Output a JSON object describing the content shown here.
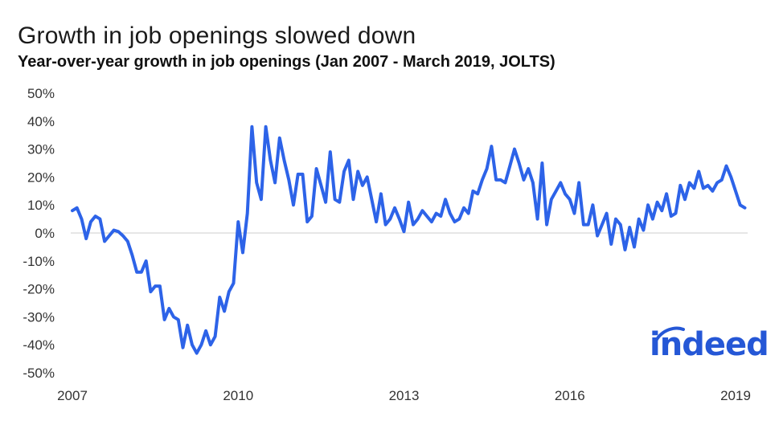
{
  "chart_data": {
    "type": "line",
    "title": "Growth in job openings slowed down",
    "subtitle": "Year-over-year growth in job openings (Jan 2007 - March 2019, JOLTS)",
    "xlabel": "",
    "ylabel": "",
    "ylim": [
      -50,
      50
    ],
    "xlim": [
      "2007-01",
      "2019-03"
    ],
    "yticks": [
      "50%",
      "40%",
      "30%",
      "20%",
      "10%",
      "0%",
      "-10%",
      "-20%",
      "-30%",
      "-40%",
      "-50%"
    ],
    "ytick_values": [
      50,
      40,
      30,
      20,
      10,
      0,
      -10,
      -20,
      -30,
      -40,
      -50
    ],
    "xticks": [
      "2007",
      "2010",
      "2013",
      "2016",
      "2019"
    ],
    "grid": "zero-line-only",
    "legend": "none",
    "line_color": "#2d63e8",
    "series": [
      {
        "name": "",
        "start": "2007-01",
        "frequency": "monthly",
        "values": [
          8,
          9,
          5,
          -2,
          4,
          6,
          5,
          -3,
          -1,
          1,
          0.5,
          -1,
          -3,
          -8,
          -14,
          -14,
          -10,
          -21,
          -19,
          -19,
          -31,
          -27,
          -30,
          -31,
          -41,
          -33,
          -40,
          -43,
          -40,
          -35,
          -40,
          -37,
          -23,
          -28,
          -21,
          -18,
          4,
          -7,
          7,
          38,
          18,
          12,
          38,
          26,
          18,
          34,
          26,
          19,
          10,
          21,
          21,
          4,
          6,
          23,
          17,
          11,
          29,
          12,
          11,
          22,
          26,
          12,
          22,
          17,
          20,
          12,
          4,
          14,
          3,
          5,
          9,
          5,
          0.5,
          11,
          3,
          5,
          8,
          6,
          4,
          7,
          6,
          12,
          7,
          4,
          5,
          9,
          7,
          15,
          14,
          19,
          23,
          31,
          19,
          19,
          18,
          24,
          30,
          25,
          19,
          23,
          18,
          5,
          25,
          3,
          12,
          15,
          18,
          14,
          12,
          7,
          18,
          3,
          3,
          10,
          -1,
          3,
          7,
          -4,
          5,
          3,
          -6,
          2,
          -5,
          5,
          1,
          10,
          5,
          11,
          8,
          14,
          6,
          7,
          17,
          12,
          18,
          16,
          22,
          16,
          17,
          15,
          18,
          19,
          24,
          20,
          15,
          10,
          9
        ]
      }
    ]
  },
  "brand": {
    "logo_text": "indeed",
    "accent": "#2557d6"
  }
}
